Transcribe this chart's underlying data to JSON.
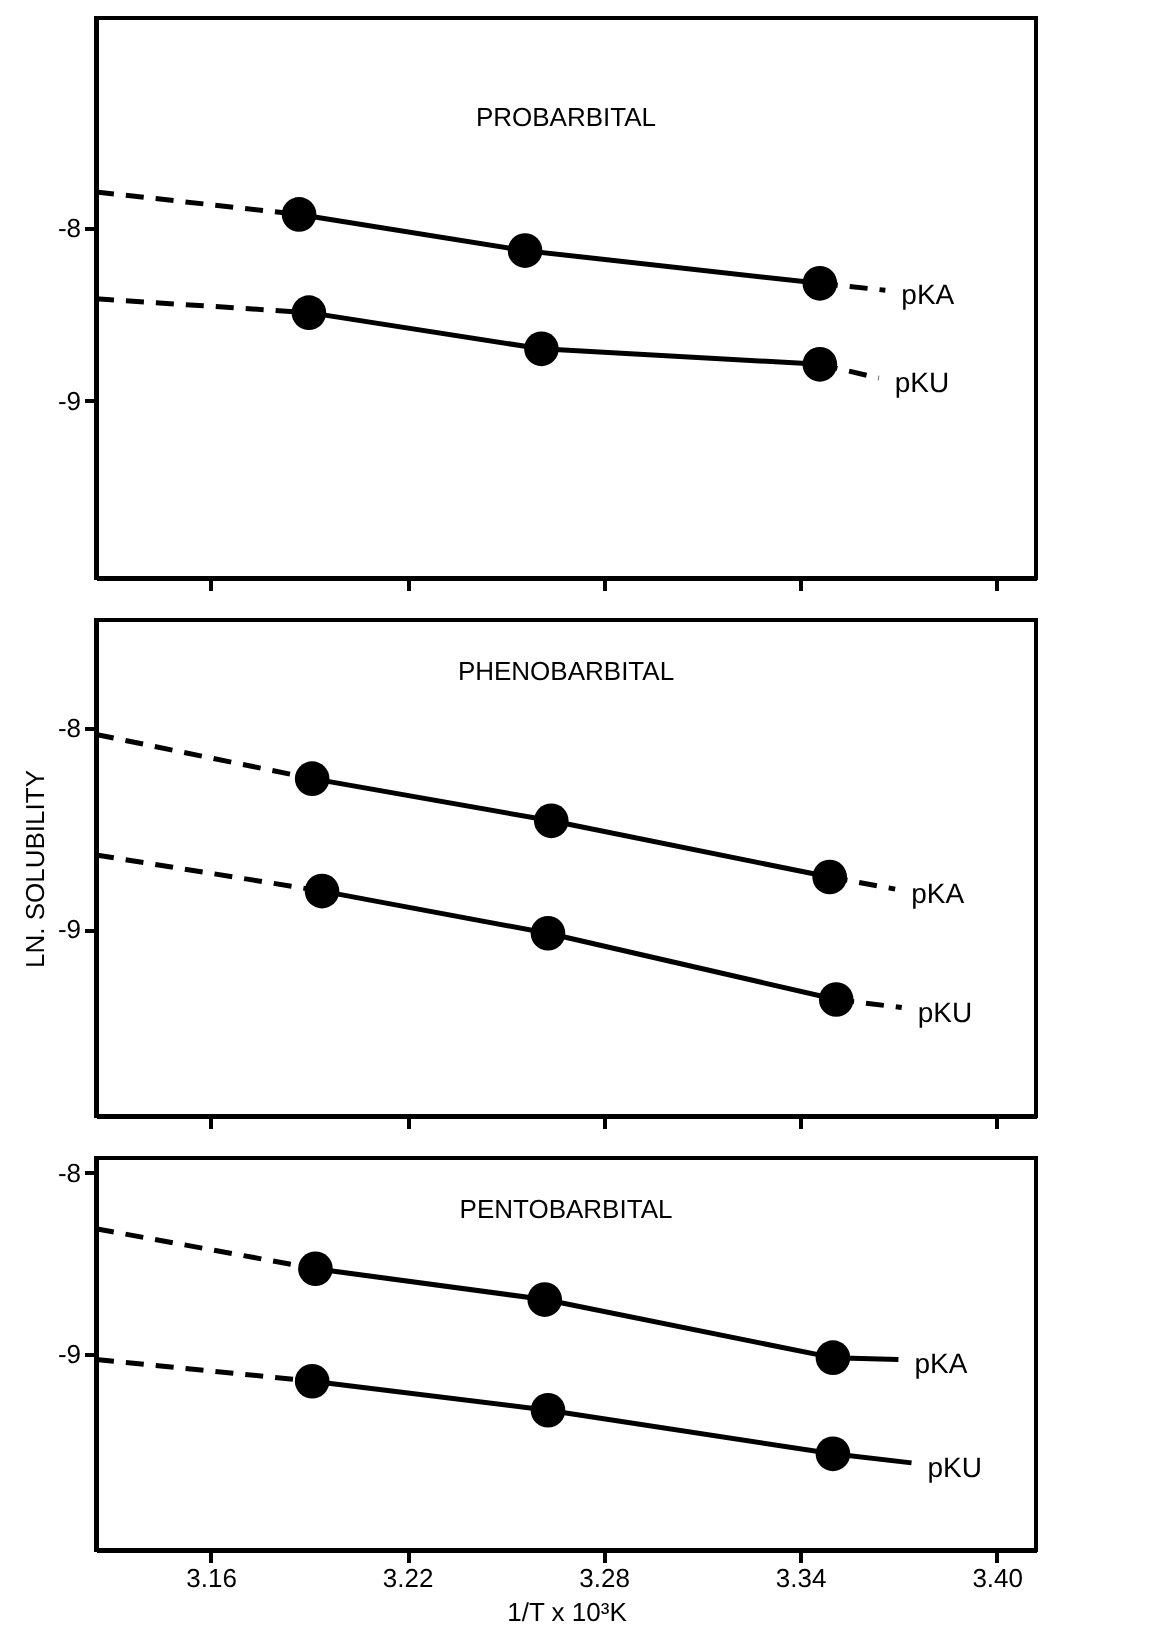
{
  "chart_data": [
    {
      "type": "line",
      "title": "PROBARBITAL",
      "xlim": [
        3.125,
        3.412
      ],
      "xticks": [
        3.16,
        3.22,
        3.28,
        3.34,
        3.4
      ],
      "ylim": [
        -10.03,
        -6.78
      ],
      "yticks": [
        -8,
        -9
      ],
      "tick_labels": "y",
      "series": [
        {
          "line_style": "solid",
          "marker": "circle",
          "color": "#000000",
          "x": [
            3.187,
            3.256,
            3.346
          ],
          "values": [
            -7.92,
            -8.13,
            -8.32
          ]
        },
        {
          "line_style": "dashed",
          "color": "#000000",
          "x": [
            3.125,
            3.187
          ],
          "values": [
            -7.79,
            -7.92
          ]
        },
        {
          "name": "pKA",
          "line_style": "dashed",
          "color": "#000000",
          "x": [
            3.346,
            3.366
          ],
          "values": [
            -8.32,
            -8.36
          ]
        },
        {
          "line_style": "solid",
          "marker": "circle",
          "color": "#000000",
          "x": [
            3.19,
            3.261,
            3.346
          ],
          "values": [
            -8.49,
            -8.7,
            -8.79
          ]
        },
        {
          "line_style": "dashed",
          "color": "#000000",
          "x": [
            3.125,
            3.19
          ],
          "values": [
            -8.41,
            -8.49
          ]
        },
        {
          "name": "pKU",
          "line_style": "dashed",
          "color": "#000000",
          "x": [
            3.346,
            3.364
          ],
          "values": [
            -8.79,
            -8.87
          ]
        }
      ]
    },
    {
      "type": "line",
      "title": "PHENOBARBITAL",
      "ylabel": "LN. SOLUBILITY",
      "xlim": [
        3.125,
        3.412
      ],
      "xticks": [
        3.16,
        3.22,
        3.28,
        3.34,
        3.4
      ],
      "ylim": [
        -9.93,
        -7.46
      ],
      "yticks": [
        -8,
        -9
      ],
      "tick_labels": "y",
      "series": [
        {
          "line_style": "solid",
          "marker": "circle",
          "color": "#000000",
          "x": [
            3.191,
            3.264,
            3.349
          ],
          "values": [
            -8.25,
            -8.46,
            -8.74
          ]
        },
        {
          "line_style": "dashed",
          "color": "#000000",
          "x": [
            3.125,
            3.191
          ],
          "values": [
            -8.03,
            -8.25
          ]
        },
        {
          "name": "pKA",
          "line_style": "dashed",
          "color": "#000000",
          "x": [
            3.349,
            3.369
          ],
          "values": [
            -8.74,
            -8.8
          ]
        },
        {
          "line_style": "solid",
          "marker": "circle",
          "color": "#000000",
          "x": [
            3.194,
            3.263,
            3.351
          ],
          "values": [
            -8.81,
            -9.02,
            -9.35
          ]
        },
        {
          "line_style": "dashed",
          "color": "#000000",
          "x": [
            3.125,
            3.194
          ],
          "values": [
            -8.63,
            -8.81
          ]
        },
        {
          "name": "pKU",
          "line_style": "dashed",
          "color": "#000000",
          "x": [
            3.351,
            3.371
          ],
          "values": [
            -9.35,
            -9.39
          ]
        }
      ]
    },
    {
      "type": "line",
      "title": "PENTOBARBITAL",
      "xlabel": "1/T x 10³K",
      "xlim": [
        3.125,
        3.412
      ],
      "xticks": [
        3.16,
        3.22,
        3.28,
        3.34,
        {
          "value": 3.4,
          "label": "3.40"
        }
      ],
      "ylim": [
        -10.08,
        -7.92
      ],
      "yticks": [
        -8,
        -9
      ],
      "series": [
        {
          "line_style": "solid",
          "marker": "circle",
          "color": "#000000",
          "x": [
            3.192,
            3.262,
            3.35
          ],
          "values": [
            -8.53,
            -8.7,
            -9.02
          ]
        },
        {
          "line_style": "dashed",
          "color": "#000000",
          "x": [
            3.125,
            3.192
          ],
          "values": [
            -8.31,
            -8.53
          ]
        },
        {
          "name": "pKA",
          "line_style": "solid",
          "color": "#000000",
          "x": [
            3.35,
            3.37
          ],
          "values": [
            -9.02,
            -9.03
          ]
        },
        {
          "line_style": "solid",
          "marker": "circle",
          "color": "#000000",
          "x": [
            3.191,
            3.263,
            3.35
          ],
          "values": [
            -9.15,
            -9.31,
            -9.55
          ]
        },
        {
          "line_style": "dashed",
          "color": "#000000",
          "x": [
            3.125,
            3.191
          ],
          "values": [
            -9.03,
            -9.15
          ]
        },
        {
          "name": "pKU",
          "line_style": "solid",
          "color": "#000000",
          "x": [
            3.35,
            3.374
          ],
          "values": [
            -9.55,
            -9.6
          ]
        }
      ]
    }
  ]
}
